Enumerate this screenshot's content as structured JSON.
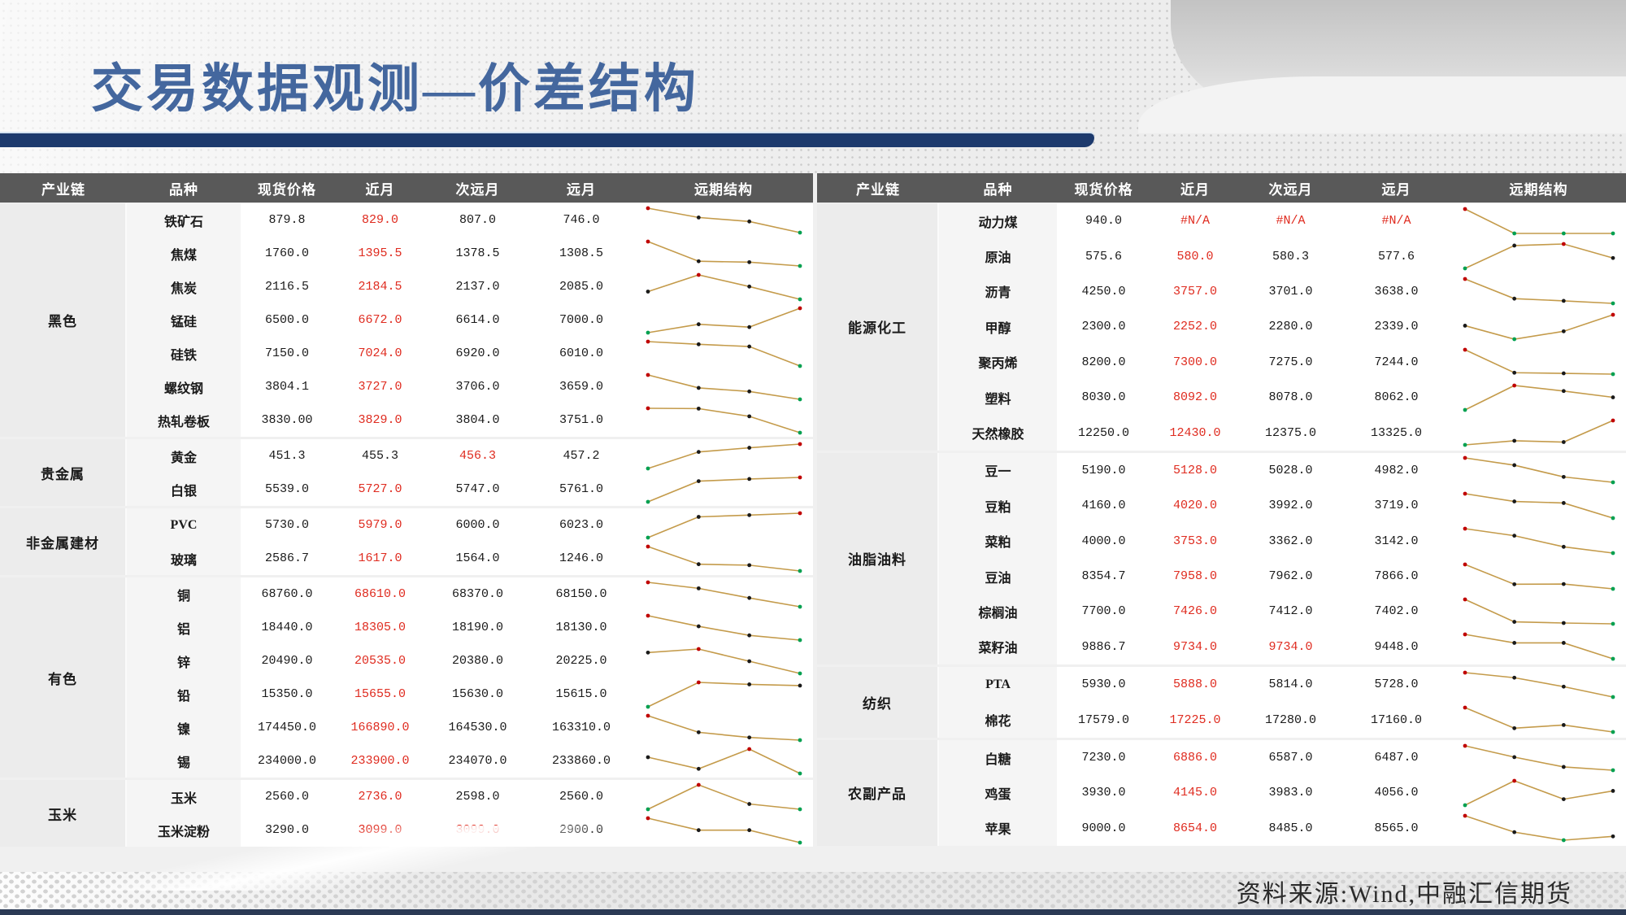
{
  "title": "交易数据观测—价差结构",
  "footer": {
    "source": "资料来源:Wind,中融汇信期货"
  },
  "columns": [
    "产业链",
    "品种",
    "现货价格",
    "近月",
    "次远月",
    "远月",
    "远期结构"
  ],
  "colors": {
    "red_text": "#df2b1f",
    "spark_line": "#c49b4b",
    "spark_high": "#c00000",
    "spark_low": "#00a050",
    "spark_mid": "#1a1a1a",
    "header_bg": "#595959",
    "accent_navy": "#1d3a6d",
    "title_blue": "#44679e"
  },
  "tables": [
    {
      "side": "left",
      "groups": [
        {
          "chain": "黑色",
          "rows": [
            {
              "variety": "铁矿石",
              "values": [
                "879.8",
                "829.0",
                "807.0",
                "746.0"
              ],
              "red": [
                1
              ]
            },
            {
              "variety": "焦煤",
              "values": [
                "1760.0",
                "1395.5",
                "1378.5",
                "1308.5"
              ],
              "red": [
                1
              ]
            },
            {
              "variety": "焦炭",
              "values": [
                "2116.5",
                "2184.5",
                "2137.0",
                "2085.0"
              ],
              "red": [
                1
              ]
            },
            {
              "variety": "锰硅",
              "values": [
                "6500.0",
                "6672.0",
                "6614.0",
                "7000.0"
              ],
              "red": [
                1
              ]
            },
            {
              "variety": "硅铁",
              "values": [
                "7150.0",
                "7024.0",
                "6920.0",
                "6010.0"
              ],
              "red": [
                1
              ]
            },
            {
              "variety": "螺纹钢",
              "values": [
                "3804.1",
                "3727.0",
                "3706.0",
                "3659.0"
              ],
              "red": [
                1
              ]
            },
            {
              "variety": "热轧卷板",
              "values": [
                "3830.00",
                "3829.0",
                "3804.0",
                "3751.0"
              ],
              "red": [
                1
              ]
            }
          ]
        },
        {
          "chain": "贵金属",
          "rows": [
            {
              "variety": "黄金",
              "values": [
                "451.3",
                "455.3",
                "456.3",
                "457.2"
              ],
              "red": [
                2
              ]
            },
            {
              "variety": "白银",
              "values": [
                "5539.0",
                "5727.0",
                "5747.0",
                "5761.0"
              ],
              "red": [
                1
              ]
            }
          ]
        },
        {
          "chain": "非金属建材",
          "rows": [
            {
              "variety": "PVC",
              "values": [
                "5730.0",
                "5979.0",
                "6000.0",
                "6023.0"
              ],
              "red": [
                1
              ]
            },
            {
              "variety": "玻璃",
              "values": [
                "2586.7",
                "1617.0",
                "1564.0",
                "1246.0"
              ],
              "red": [
                1
              ]
            }
          ]
        },
        {
          "chain": "有色",
          "rows": [
            {
              "variety": "铜",
              "values": [
                "68760.0",
                "68610.0",
                "68370.0",
                "68150.0"
              ],
              "red": [
                1
              ]
            },
            {
              "variety": "铝",
              "values": [
                "18440.0",
                "18305.0",
                "18190.0",
                "18130.0"
              ],
              "red": [
                1
              ]
            },
            {
              "variety": "锌",
              "values": [
                "20490.0",
                "20535.0",
                "20380.0",
                "20225.0"
              ],
              "red": [
                1
              ]
            },
            {
              "variety": "铅",
              "values": [
                "15350.0",
                "15655.0",
                "15630.0",
                "15615.0"
              ],
              "red": [
                1
              ]
            },
            {
              "variety": "镍",
              "values": [
                "174450.0",
                "166890.0",
                "164530.0",
                "163310.0"
              ],
              "red": [
                1
              ]
            },
            {
              "variety": "锡",
              "values": [
                "234000.0",
                "233900.0",
                "234070.0",
                "233860.0"
              ],
              "red": [
                1
              ]
            }
          ]
        },
        {
          "chain": "玉米",
          "rows": [
            {
              "variety": "玉米",
              "values": [
                "2560.0",
                "2736.0",
                "2598.0",
                "2560.0"
              ],
              "red": [
                1
              ]
            },
            {
              "variety": "玉米淀粉",
              "values": [
                "3290.0",
                "3099.0",
                "3099.0",
                "2900.0"
              ],
              "red": [
                1,
                2
              ]
            }
          ]
        }
      ]
    },
    {
      "side": "right",
      "groups": [
        {
          "chain": "能源化工",
          "rows": [
            {
              "variety": "动力煤",
              "values": [
                "940.0",
                "#N/A",
                "#N/A",
                "#N/A"
              ],
              "red": [
                1,
                2,
                3
              ],
              "spark": [
                940,
                700,
                700,
                700
              ]
            },
            {
              "variety": "原油",
              "values": [
                "575.6",
                "580.0",
                "580.3",
                "577.6"
              ],
              "red": [
                1
              ]
            },
            {
              "variety": "沥青",
              "values": [
                "4250.0",
                "3757.0",
                "3701.0",
                "3638.0"
              ],
              "red": [
                1
              ]
            },
            {
              "variety": "甲醇",
              "values": [
                "2300.0",
                "2252.0",
                "2280.0",
                "2339.0"
              ],
              "red": [
                1
              ]
            },
            {
              "variety": "聚丙烯",
              "values": [
                "8200.0",
                "7300.0",
                "7275.0",
                "7244.0"
              ],
              "red": [
                1
              ]
            },
            {
              "variety": "塑料",
              "values": [
                "8030.0",
                "8092.0",
                "8078.0",
                "8062.0"
              ],
              "red": [
                1
              ]
            },
            {
              "variety": "天然橡胶",
              "values": [
                "12250.0",
                "12430.0",
                "12375.0",
                "13325.0"
              ],
              "red": [
                1
              ]
            }
          ]
        },
        {
          "chain": "油脂油料",
          "rows": [
            {
              "variety": "豆一",
              "values": [
                "5190.0",
                "5128.0",
                "5028.0",
                "4982.0"
              ],
              "red": [
                1
              ]
            },
            {
              "variety": "豆粕",
              "values": [
                "4160.0",
                "4020.0",
                "3992.0",
                "3719.0"
              ],
              "red": [
                1
              ]
            },
            {
              "variety": "菜粕",
              "values": [
                "4000.0",
                "3753.0",
                "3362.0",
                "3142.0"
              ],
              "red": [
                1
              ]
            },
            {
              "variety": "豆油",
              "values": [
                "8354.7",
                "7958.0",
                "7962.0",
                "7866.0"
              ],
              "red": [
                1
              ]
            },
            {
              "variety": "棕榈油",
              "values": [
                "7700.0",
                "7426.0",
                "7412.0",
                "7402.0"
              ],
              "red": [
                1
              ]
            },
            {
              "variety": "菜籽油",
              "values": [
                "9886.7",
                "9734.0",
                "9734.0",
                "9448.0"
              ],
              "red": [
                1,
                2
              ]
            }
          ]
        },
        {
          "chain": "纺织",
          "rows": [
            {
              "variety": "PTA",
              "values": [
                "5930.0",
                "5888.0",
                "5814.0",
                "5728.0"
              ],
              "red": [
                1
              ]
            },
            {
              "variety": "棉花",
              "values": [
                "17579.0",
                "17225.0",
                "17280.0",
                "17160.0"
              ],
              "red": [
                1
              ]
            }
          ]
        },
        {
          "chain": "农副产品",
          "rows": [
            {
              "variety": "白糖",
              "values": [
                "7230.0",
                "6886.0",
                "6587.0",
                "6487.0"
              ],
              "red": [
                1
              ]
            },
            {
              "variety": "鸡蛋",
              "values": [
                "3930.0",
                "4145.0",
                "3983.0",
                "4056.0"
              ],
              "red": [
                1
              ]
            },
            {
              "variety": "苹果",
              "values": [
                "9000.0",
                "8654.0",
                "8485.0",
                "8565.0"
              ],
              "red": [
                1
              ]
            }
          ]
        }
      ]
    }
  ]
}
